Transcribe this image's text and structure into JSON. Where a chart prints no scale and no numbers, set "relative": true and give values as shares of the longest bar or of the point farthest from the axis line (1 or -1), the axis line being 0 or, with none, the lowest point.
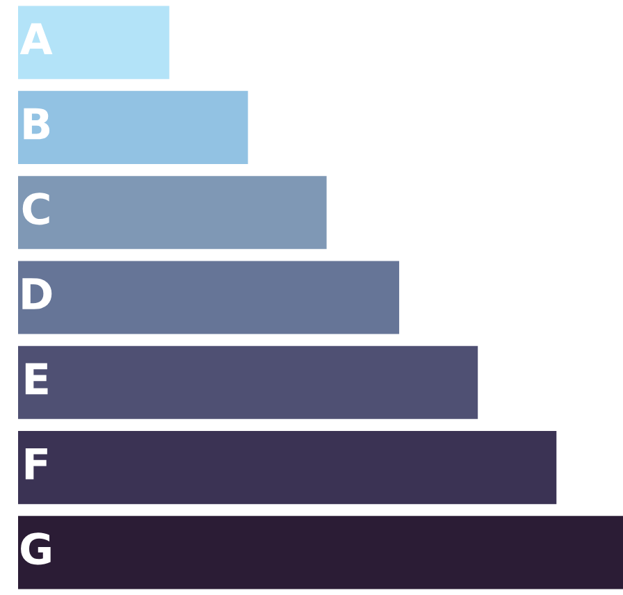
{
  "chart_data": {
    "type": "bar",
    "orientation": "horizontal",
    "relative": true,
    "categories": [
      "A",
      "B",
      "C",
      "D",
      "E",
      "F",
      "G"
    ],
    "values": [
      0.25,
      0.38,
      0.51,
      0.63,
      0.76,
      0.89,
      1
    ],
    "colors": [
      "#b3e3f8",
      "#92c2e3",
      "#7f98b5",
      "#667597",
      "#4f5073",
      "#3b3354",
      "#2b1c35"
    ],
    "legend": false
  }
}
